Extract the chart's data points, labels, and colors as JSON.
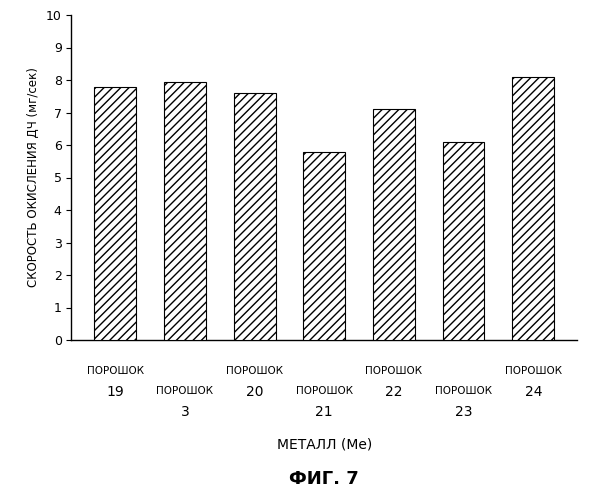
{
  "categories": [
    {
      "word": "ПОРОШОК",
      "num": "19",
      "stagger": false
    },
    {
      "word": "ПОРОШОК",
      "num": "3",
      "stagger": true
    },
    {
      "word": "ПОРОШОК",
      "num": "20",
      "stagger": false
    },
    {
      "word": "ПОРОШОК",
      "num": "21",
      "stagger": true
    },
    {
      "word": "ПОРОШОК",
      "num": "22",
      "stagger": false
    },
    {
      "word": "ПОРОШОК",
      "num": "23",
      "stagger": true
    },
    {
      "word": "ПОРОШОК",
      "num": "24",
      "stagger": false
    }
  ],
  "values": [
    7.8,
    7.95,
    7.6,
    5.8,
    7.1,
    6.1,
    8.1
  ],
  "ylim": [
    0,
    10
  ],
  "yticks": [
    0,
    1,
    2,
    3,
    4,
    5,
    6,
    7,
    8,
    9,
    10
  ],
  "ylabel": "СКОРОСТЬ ОКИСЛЕНИЯ ДЧ (мг/сек)",
  "xlabel": "МЕТАЛЛ (Ме)",
  "title": "ФИГ. 7",
  "bar_color": "#ffffff",
  "bar_edgecolor": "#000000",
  "hatch": "////",
  "bar_width": 0.6,
  "background_color": "#ffffff",
  "word_fontsize": 7.5,
  "num_fontsize": 10.0,
  "ylabel_fontsize": 8.5,
  "xlabel_fontsize": 10.0,
  "title_fontsize": 13.0,
  "ytick_fontsize": 9.0
}
